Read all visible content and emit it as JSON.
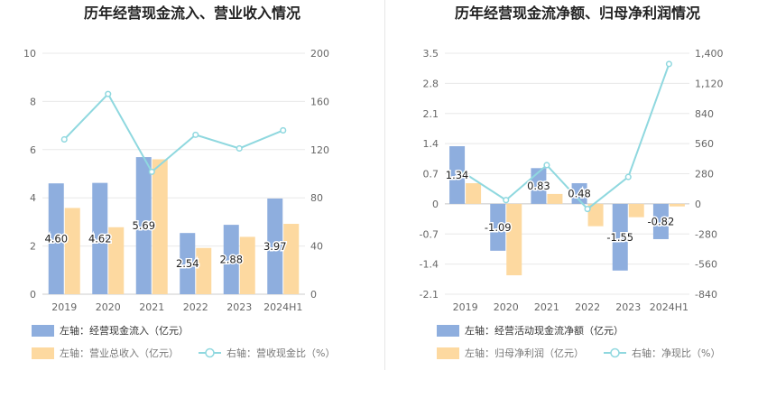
{
  "colors": {
    "bar_left": "#8eaede",
    "bar_right": "#fdd9a0",
    "line": "#8fd8df",
    "grid": "#e8e8e8",
    "axis_text": "#666666",
    "title": "#222222",
    "label": "#222222"
  },
  "chart_data": [
    {
      "type": "bar",
      "title": "历年经营现金流入、营业收入情况",
      "categories": [
        "2019",
        "2020",
        "2021",
        "2022",
        "2023",
        "2024H1"
      ],
      "y_left": {
        "ticks": [
          "0",
          "2",
          "4",
          "6",
          "8",
          "10"
        ],
        "ylim": [
          0,
          10
        ]
      },
      "y_right": {
        "ticks": [
          "0",
          "40",
          "80",
          "120",
          "160",
          "200"
        ],
        "ylim": [
          0,
          200
        ]
      },
      "series": [
        {
          "name": "左轴：经营现金流入（亿元）",
          "axis": "left",
          "kind": "bar",
          "values": [
            4.6,
            4.62,
            5.69,
            2.54,
            2.88,
            3.97
          ],
          "labels": [
            "4.60",
            "4.62",
            "5.69",
            "2.54",
            "2.88",
            "3.97"
          ]
        },
        {
          "name": "左轴：营业总收入（亿元）",
          "axis": "left",
          "kind": "bar",
          "values": [
            3.58,
            2.78,
            5.6,
            1.92,
            2.38,
            2.92
          ]
        },
        {
          "name": "右轴：营收现金比（%）",
          "axis": "right",
          "kind": "line",
          "values": [
            128.5,
            166.2,
            101.6,
            132.3,
            121.0,
            136.0
          ]
        }
      ]
    },
    {
      "type": "bar",
      "title": "历年经营现金流净额、归母净利润情况",
      "categories": [
        "2019",
        "2020",
        "2021",
        "2022",
        "2023",
        "2024H1"
      ],
      "y_left": {
        "ticks": [
          "-2.1",
          "-1.4",
          "-0.7",
          "0",
          "0.7",
          "1.4",
          "2.1",
          "2.8",
          "3.5"
        ],
        "ylim": [
          -2.1,
          3.5
        ]
      },
      "y_right": {
        "ticks": [
          "-840",
          "-560",
          "-280",
          "0",
          "280",
          "560",
          "840",
          "1,120",
          "1,400"
        ],
        "ylim": [
          -840,
          1400
        ]
      },
      "series": [
        {
          "name": "左轴：经营活动现金流净额（亿元）",
          "axis": "left",
          "kind": "bar",
          "values": [
            1.34,
            -1.09,
            0.83,
            0.48,
            -1.55,
            -0.82
          ],
          "labels": [
            "1.34",
            "-1.09",
            "0.83",
            "0.48",
            "-1.55",
            "-0.82"
          ]
        },
        {
          "name": "左轴：归母净利润（亿元）",
          "axis": "left",
          "kind": "bar",
          "values": [
            0.48,
            -1.66,
            0.23,
            -0.52,
            -0.31,
            -0.06
          ]
        },
        {
          "name": "右轴：净现比（%）",
          "axis": "right",
          "kind": "line",
          "values": [
            280,
            35,
            360,
            -48,
            250,
            1300
          ]
        }
      ]
    }
  ]
}
